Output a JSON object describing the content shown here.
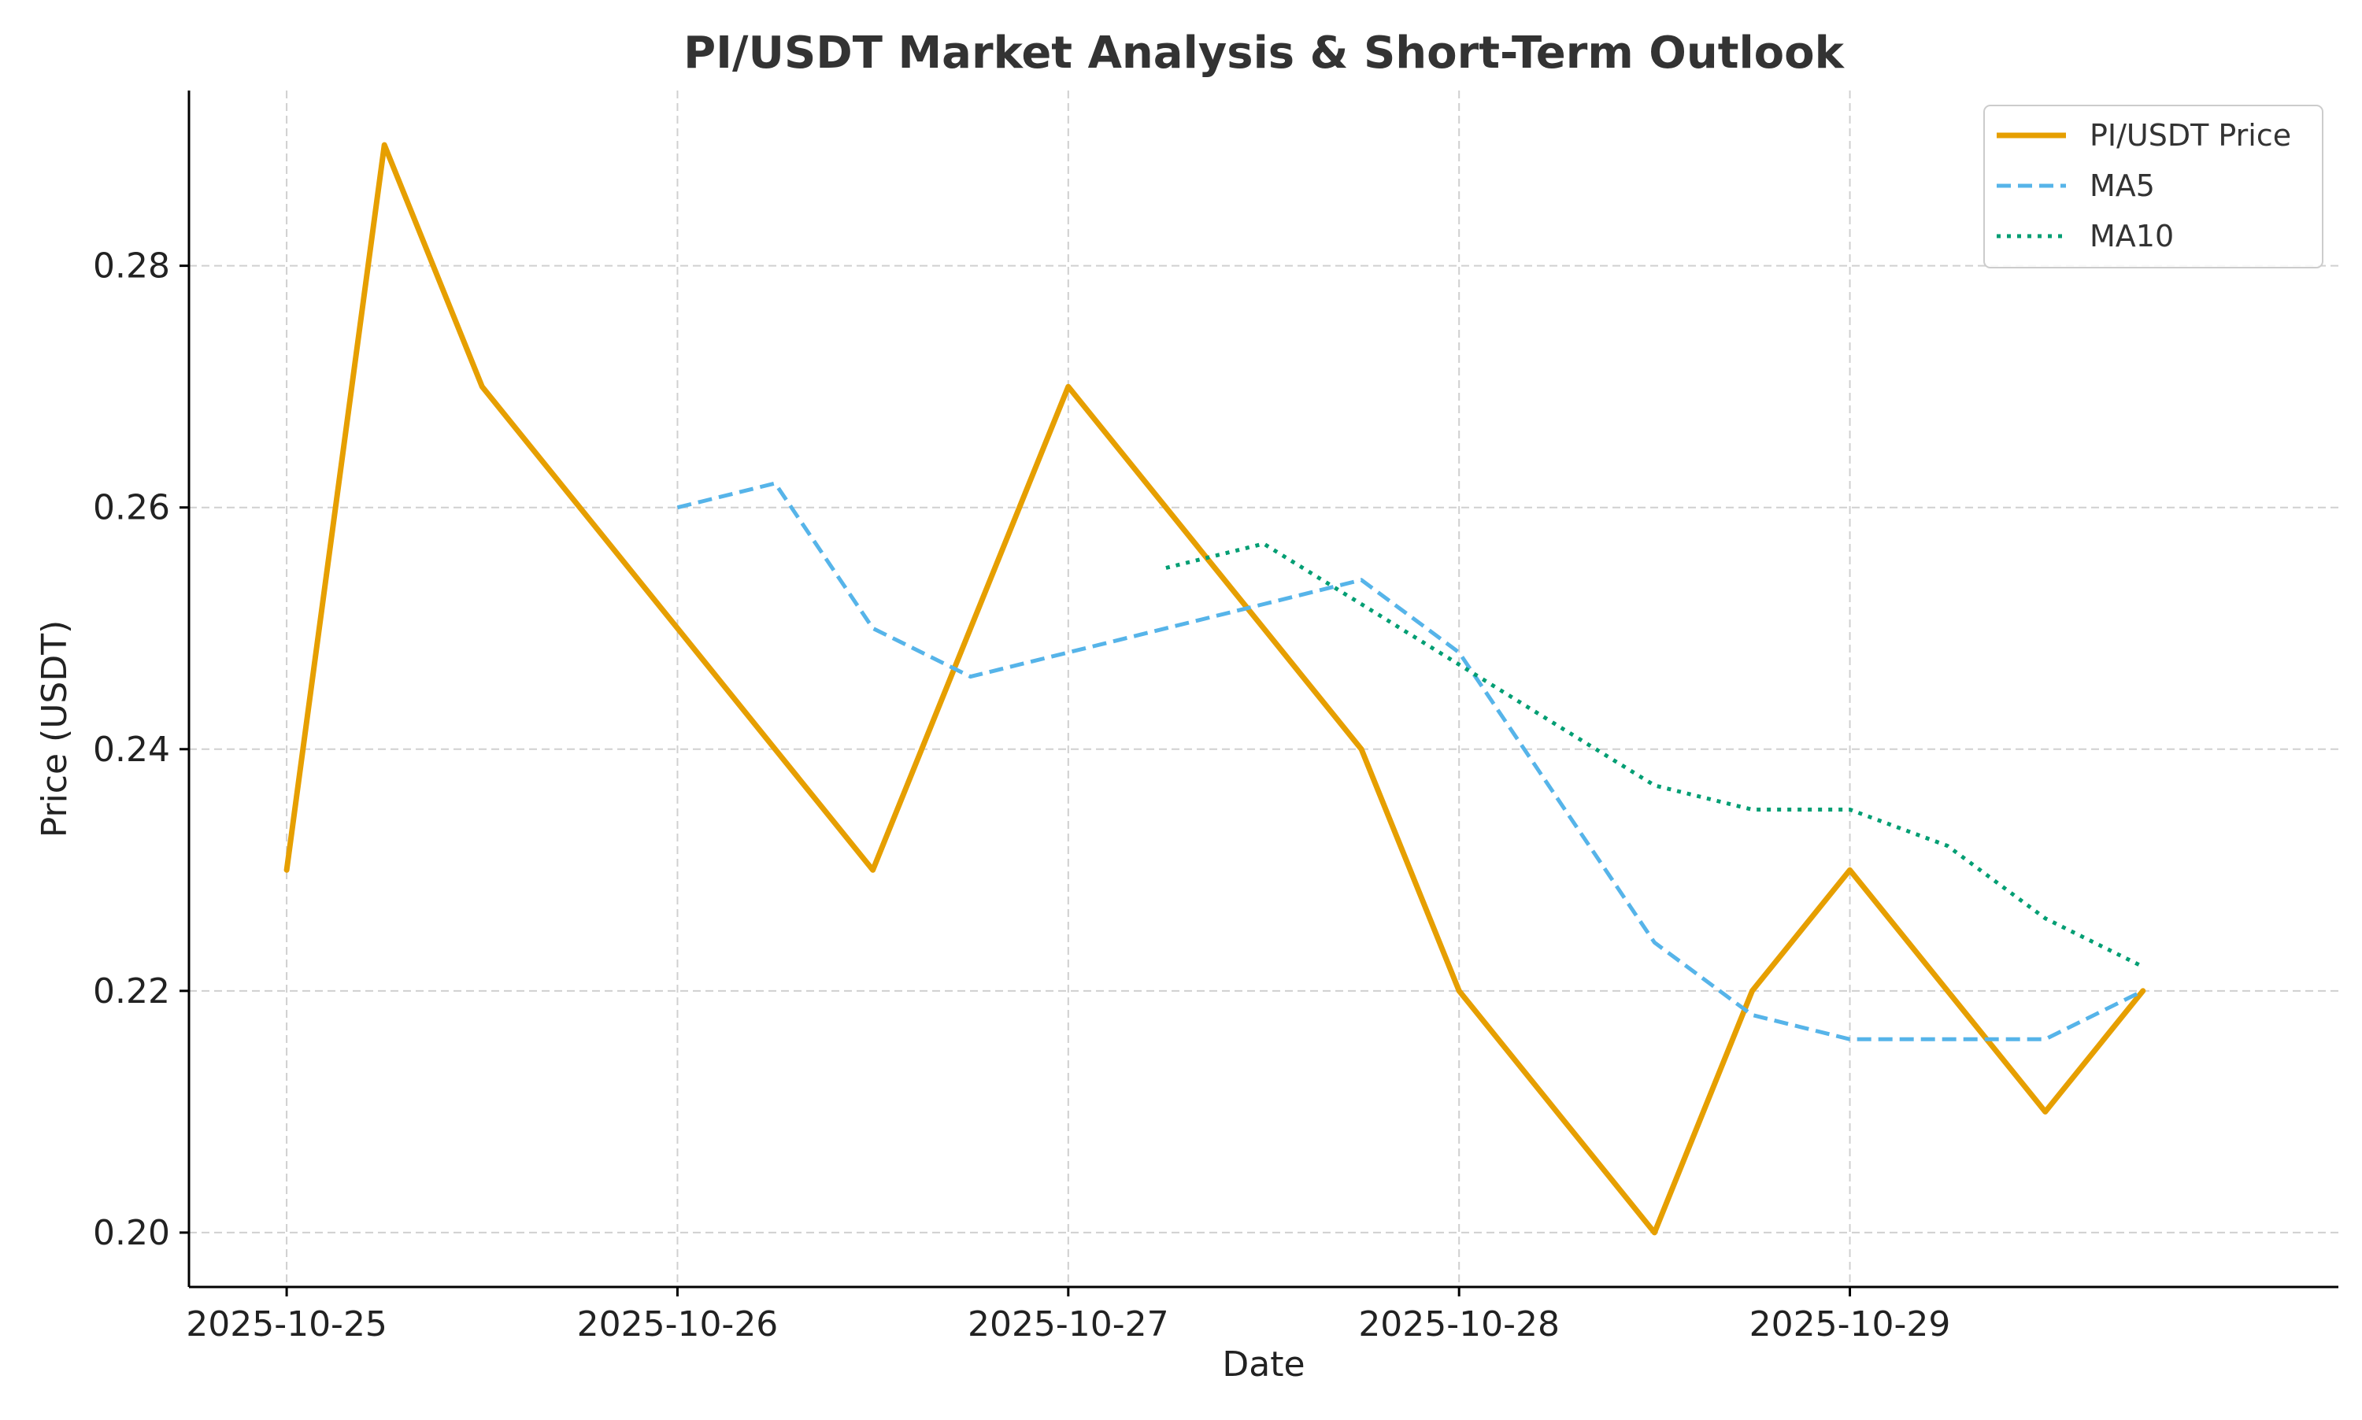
{
  "chart_data": {
    "type": "line",
    "title": "PI/USDT Market Analysis & Short-Term Outlook",
    "xlabel": "Date",
    "ylabel": "Price (USDT)",
    "x_type": "datetime",
    "x": [
      "2025-10-25 00:00",
      "2025-10-25 06:00",
      "2025-10-25 12:00",
      "2025-10-25 18:00",
      "2025-10-26 00:00",
      "2025-10-26 06:00",
      "2025-10-26 12:00",
      "2025-10-26 18:00",
      "2025-10-27 00:00",
      "2025-10-27 06:00",
      "2025-10-27 12:00",
      "2025-10-27 18:00",
      "2025-10-28 00:00",
      "2025-10-28 06:00",
      "2025-10-28 12:00",
      "2025-10-28 18:00",
      "2025-10-29 00:00",
      "2025-10-29 06:00",
      "2025-10-29 12:00",
      "2025-10-29 18:00"
    ],
    "xlim": [
      "2025-10-24 18:00",
      "2025-10-30 06:00"
    ],
    "ylim": [
      0.1955,
      0.2945
    ],
    "x_ticks": [
      "2025-10-25",
      "2025-10-26",
      "2025-10-27",
      "2025-10-28",
      "2025-10-29"
    ],
    "y_ticks": [
      "0.20",
      "0.22",
      "0.24",
      "0.26",
      "0.28"
    ],
    "grid": true,
    "legend_position": "top-right",
    "series": [
      {
        "name": "PI/USDT Price",
        "color": "#E69F00",
        "style": "solid",
        "values": [
          0.23,
          0.29,
          0.27,
          0.26,
          0.25,
          0.24,
          0.23,
          0.25,
          0.27,
          0.26,
          0.25,
          0.24,
          0.22,
          0.21,
          0.2,
          0.22,
          0.23,
          0.22,
          0.21,
          0.22
        ]
      },
      {
        "name": "MA5",
        "color": "#56B4E9",
        "style": "dashed",
        "values": [
          null,
          null,
          null,
          null,
          0.26,
          0.262,
          0.25,
          0.246,
          0.248,
          0.25,
          0.252,
          0.254,
          0.248,
          0.236,
          0.224,
          0.218,
          0.216,
          0.216,
          0.216,
          0.22
        ]
      },
      {
        "name": "MA10",
        "color": "#009E73",
        "style": "dotted",
        "values": [
          null,
          null,
          null,
          null,
          null,
          null,
          null,
          null,
          null,
          0.255,
          0.257,
          0.252,
          0.247,
          0.242,
          0.237,
          0.235,
          0.235,
          0.232,
          0.226,
          0.222
        ]
      }
    ]
  }
}
